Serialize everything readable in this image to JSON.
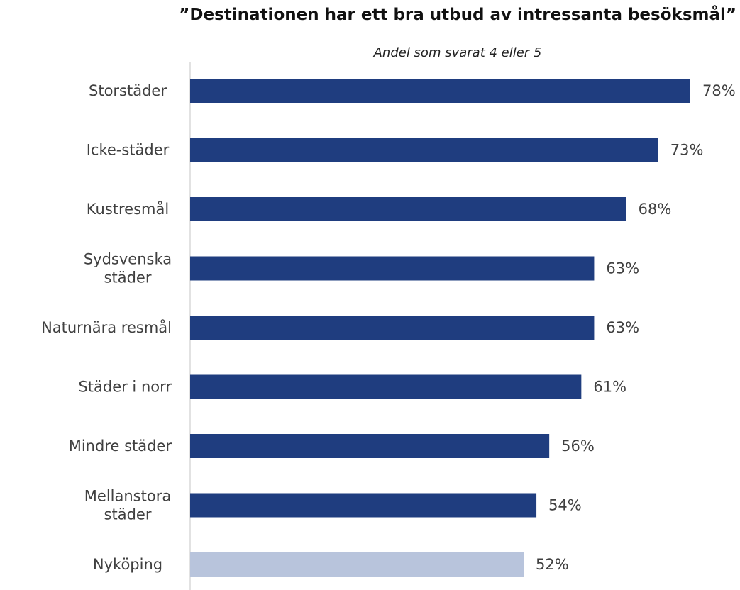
{
  "chart_data": {
    "type": "bar",
    "orientation": "horizontal",
    "title": "”Destinationen har ett bra utbud av intressanta besöksmål”",
    "subtitle": "Andel som svarat 4 eller 5",
    "categories": [
      [
        "Storstäder"
      ],
      [
        "Icke-städer"
      ],
      [
        "Kustresmål"
      ],
      [
        "Sydsvenska",
        "städer"
      ],
      [
        "Naturnära resmål"
      ],
      [
        "Städer i norr"
      ],
      [
        "Mindre städer"
      ],
      [
        "Mellanstora",
        "städer"
      ],
      [
        "Nyköping"
      ]
    ],
    "values": [
      78,
      73,
      68,
      63,
      63,
      61,
      56,
      54,
      52
    ],
    "value_labels": [
      "78%",
      "73%",
      "68%",
      "63%",
      "63%",
      "61%",
      "56%",
      "54%",
      "52%"
    ],
    "bar_colors": [
      "#1f3d7f",
      "#1f3d7f",
      "#1f3d7f",
      "#1f3d7f",
      "#1f3d7f",
      "#1f3d7f",
      "#1f3d7f",
      "#1f3d7f",
      "#b8c4dc"
    ],
    "axis_color": "#d9d9d9",
    "xlim": [
      0,
      78
    ],
    "grid": false,
    "legend": "none"
  }
}
